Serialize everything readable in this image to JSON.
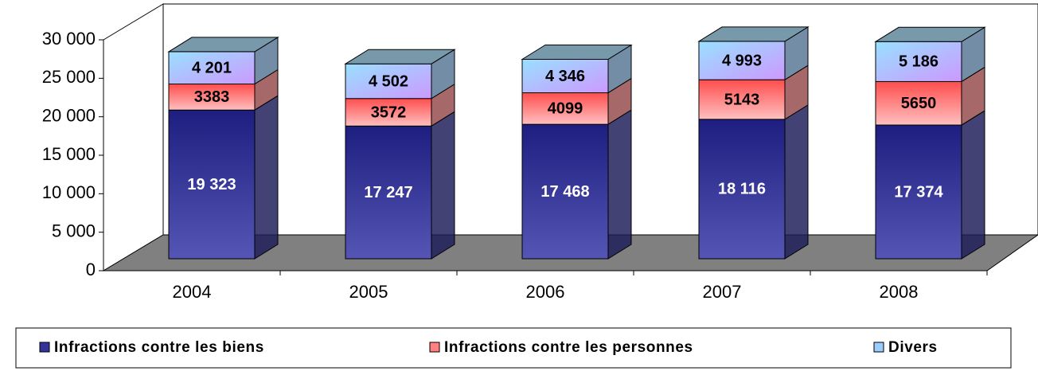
{
  "chart_data": {
    "type": "bar3d_stacked",
    "categories": [
      "2004",
      "2005",
      "2006",
      "2007",
      "2008"
    ],
    "series": [
      {
        "name": "Infractions contre les biens",
        "color": "#333399",
        "values": [
          19323,
          17247,
          17468,
          18116,
          17374
        ],
        "value_labels": [
          "19 323",
          "17 247",
          "17 468",
          "18 116",
          "17 374"
        ]
      },
      {
        "name": "Infractions contre les personnes",
        "color": "#ff8080",
        "values": [
          3383,
          3572,
          4099,
          5143,
          5650
        ]
      },
      {
        "name": "Divers",
        "color": "#99ccff",
        "values": [
          4201,
          4502,
          4346,
          4993,
          5186
        ],
        "value_labels": [
          "4 201",
          "4 502",
          "4 346",
          "4 993",
          "5 186"
        ]
      }
    ],
    "ylim": [
      0,
      30000
    ],
    "yticks": [
      0,
      {
        "value": 5000,
        "label": "5 000"
      },
      {
        "value": 10000,
        "label": "10 000"
      },
      {
        "value": 15000,
        "label": "15 000"
      },
      {
        "value": 20000,
        "label": "20 000"
      },
      {
        "value": 25000,
        "label": "25 000"
      },
      {
        "value": 30000,
        "label": "30 000"
      }
    ],
    "grid": false,
    "legend": "bottom"
  }
}
